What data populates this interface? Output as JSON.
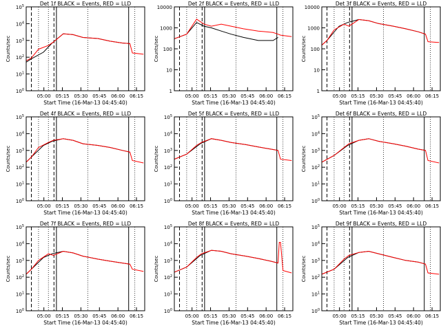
{
  "figure": {
    "xlabel_template": "Start Time (16-Mar-13 04:45:40)",
    "ylabel": "Counts/sec",
    "legend_suffix": "BLACK = Events, RED = LLD",
    "x_ticks": [
      "05:00",
      "05:15",
      "05:30",
      "05:45",
      "06:00",
      "06:15"
    ],
    "colors": {
      "events": "#000000",
      "lld": "#ff0000",
      "axes": "#000000",
      "background": "#ffffff"
    }
  },
  "chart_data": [
    {
      "type": "line",
      "title": "Det 1f BLACK = Events, RED = LLD",
      "ylabel": "Counts/sec",
      "xlabel": "Start Time (16-Mar-13 04:45:40)",
      "y_scale": "log",
      "ylim": [
        1,
        100000
      ],
      "y_ticks": [
        "10^0",
        "10^1",
        "10^2",
        "10^3",
        "10^4",
        "10^5"
      ],
      "x_ticks": [
        "05:00",
        "05:15",
        "05:30",
        "05:45",
        "06:00",
        "06:15"
      ],
      "series": [
        {
          "name": "Events",
          "color": "#000000",
          "t": [
            0,
            4.2,
            14,
            21,
            30,
            38,
            46,
            58,
            68,
            78,
            84
          ],
          "y": [
            50,
            80,
            200,
            700,
            2500,
            2200,
            1500,
            1300,
            900,
            700,
            650
          ]
        },
        {
          "name": "LLD",
          "color": "#ff0000",
          "t": [
            0,
            4.2,
            10,
            18,
            22,
            30,
            38,
            46,
            58,
            68,
            78,
            84,
            86,
            95
          ],
          "y": [
            60,
            90,
            300,
            500,
            800,
            2500,
            2200,
            1500,
            1300,
            900,
            700,
            650,
            180,
            150
          ]
        }
      ]
    },
    {
      "type": "line",
      "title": "Det 2f BLACK = Events, RED = LLD",
      "ylabel": "Counts/sec",
      "xlabel": "Start Time (16-Mar-13 04:45:40)",
      "y_scale": "log",
      "ylim": [
        1,
        10000
      ],
      "y_ticks": [
        "1",
        "10",
        "100",
        "1000",
        "10000"
      ],
      "x_ticks": [
        "05:00",
        "05:15",
        "05:30",
        "05:45",
        "06:00",
        "06:15"
      ],
      "series": [
        {
          "name": "Events",
          "color": "#000000",
          "t": [
            0,
            10,
            18,
            24,
            30,
            38,
            46,
            56,
            68,
            80,
            84
          ],
          "y": [
            300,
            500,
            1800,
            1200,
            1000,
            700,
            500,
            350,
            250,
            250,
            350
          ]
        },
        {
          "name": "LLD",
          "color": "#ff0000",
          "t": [
            0,
            10,
            18,
            24,
            30,
            38,
            46,
            56,
            68,
            80,
            84,
            86,
            95
          ],
          "y": [
            300,
            500,
            2600,
            1500,
            1200,
            1500,
            1200,
            900,
            700,
            600,
            500,
            450,
            380
          ]
        }
      ]
    },
    {
      "type": "line",
      "title": "Det 3f BLACK = Events, RED = LLD",
      "ylabel": "Counts/sec",
      "xlabel": "Start Time (16-Mar-13 04:45:40)",
      "y_scale": "log",
      "ylim": [
        1,
        10000
      ],
      "y_ticks": [
        "1",
        "10",
        "100",
        "1000",
        "10000"
      ],
      "x_ticks": [
        "05:00",
        "05:15",
        "05:30",
        "05:45",
        "06:00",
        "06:15"
      ],
      "series": [
        {
          "name": "Events",
          "color": "#000000",
          "t": [
            0,
            4.2,
            14,
            21,
            30,
            38,
            46,
            58,
            68,
            78,
            84
          ],
          "y": [
            150,
            250,
            1200,
            1800,
            2500,
            2200,
            1600,
            1200,
            900,
            650,
            500
          ]
        },
        {
          "name": "LLD",
          "color": "#ff0000",
          "t": [
            0,
            4.2,
            10,
            18,
            22,
            30,
            38,
            46,
            58,
            68,
            78,
            84,
            86,
            95
          ],
          "y": [
            150,
            250,
            800,
            1500,
            1200,
            2500,
            2200,
            1600,
            1200,
            900,
            650,
            500,
            220,
            200
          ]
        }
      ]
    },
    {
      "type": "line",
      "title": "Det 4f BLACK = Events, RED = LLD",
      "ylabel": "Counts/sec",
      "xlabel": "Start Time (16-Mar-13 04:45:40)",
      "y_scale": "log",
      "ylim": [
        1,
        100000
      ],
      "y_ticks": [
        "10^0",
        "10^1",
        "10^2",
        "10^3",
        "10^4",
        "10^5"
      ],
      "x_ticks": [
        "05:00",
        "05:15",
        "05:30",
        "05:45",
        "06:00",
        "06:15"
      ],
      "series": [
        {
          "name": "Events",
          "color": "#000000",
          "t": [
            0,
            4.2,
            14,
            21,
            30,
            38,
            46,
            58,
            68,
            78,
            84
          ],
          "y": [
            200,
            400,
            2000,
            3500,
            5000,
            4000,
            2500,
            2000,
            1500,
            1000,
            800
          ]
        },
        {
          "name": "LLD",
          "color": "#ff0000",
          "t": [
            0,
            4.2,
            10,
            18,
            22,
            30,
            38,
            46,
            58,
            68,
            78,
            84,
            86,
            95
          ],
          "y": [
            200,
            400,
            1500,
            3000,
            4000,
            5000,
            4000,
            2500,
            2000,
            1500,
            1000,
            800,
            250,
            180
          ]
        }
      ]
    },
    {
      "type": "line",
      "title": "Det 5f BLACK = Events, RED = LLD",
      "ylabel": "Counts/sec",
      "xlabel": "Start Time (16-Mar-13 04:45:40)",
      "y_scale": "log",
      "ylim": [
        1,
        100000
      ],
      "y_ticks": [
        "10^0",
        "10^1",
        "10^2",
        "10^3",
        "10^4",
        "10^5"
      ],
      "x_ticks": [
        "05:00",
        "05:15",
        "05:30",
        "05:45",
        "06:00",
        "06:15"
      ],
      "series": [
        {
          "name": "Events",
          "color": "#000000",
          "t": [
            0,
            10,
            21,
            30,
            38,
            46,
            58,
            68,
            78,
            84
          ],
          "y": [
            300,
            600,
            2500,
            5000,
            4000,
            3000,
            2200,
            1600,
            1200,
            1000
          ]
        },
        {
          "name": "LLD",
          "color": "#ff0000",
          "t": [
            0,
            10,
            18,
            22,
            30,
            38,
            46,
            58,
            68,
            78,
            84,
            86,
            95
          ],
          "y": [
            300,
            600,
            2000,
            3000,
            5000,
            4000,
            3000,
            2200,
            1600,
            1200,
            1000,
            300,
            250
          ]
        }
      ]
    },
    {
      "type": "line",
      "title": "Det 6f BLACK = Events, RED = LLD",
      "ylabel": "Counts/sec",
      "xlabel": "Start Time (16-Mar-13 04:45:40)",
      "y_scale": "log",
      "ylim": [
        1,
        100000
      ],
      "y_ticks": [
        "10^0",
        "10^1",
        "10^2",
        "10^3",
        "10^4",
        "10^5"
      ],
      "x_ticks": [
        "05:00",
        "05:15",
        "05:30",
        "05:45",
        "06:00",
        "06:15"
      ],
      "series": [
        {
          "name": "Events",
          "color": "#000000",
          "t": [
            0,
            10,
            21,
            30,
            38,
            46,
            58,
            68,
            78,
            84
          ],
          "y": [
            200,
            500,
            2000,
            4000,
            5000,
            3500,
            2500,
            1800,
            1200,
            1000
          ]
        },
        {
          "name": "LLD",
          "color": "#ff0000",
          "t": [
            0,
            10,
            18,
            22,
            30,
            38,
            46,
            58,
            68,
            78,
            84,
            86,
            95
          ],
          "y": [
            200,
            500,
            1500,
            2500,
            4000,
            5000,
            3500,
            2500,
            1800,
            1200,
            1000,
            250,
            180
          ]
        }
      ]
    },
    {
      "type": "line",
      "title": "Det 7f BLACK = Events, RED = LLD",
      "ylabel": "Counts/sec",
      "xlabel": "Start Time (16-Mar-13 04:45:40)",
      "y_scale": "log",
      "ylim": [
        1,
        100000
      ],
      "y_ticks": [
        "10^0",
        "10^1",
        "10^2",
        "10^3",
        "10^4",
        "10^5"
      ],
      "x_ticks": [
        "05:00",
        "05:15",
        "05:30",
        "05:45",
        "06:00",
        "06:15"
      ],
      "series": [
        {
          "name": "Events",
          "color": "#000000",
          "t": [
            0,
            4.2,
            14,
            21,
            30,
            38,
            46,
            58,
            68,
            78,
            84
          ],
          "y": [
            150,
            300,
            1500,
            2500,
            3500,
            2800,
            1800,
            1200,
            900,
            700,
            600
          ]
        },
        {
          "name": "LLD",
          "color": "#ff0000",
          "t": [
            0,
            4.2,
            10,
            18,
            22,
            30,
            38,
            46,
            58,
            68,
            78,
            84,
            86,
            95
          ],
          "y": [
            150,
            300,
            1000,
            2500,
            2000,
            3500,
            2800,
            1800,
            1200,
            900,
            700,
            600,
            300,
            220
          ]
        }
      ]
    },
    {
      "type": "line",
      "title": "Det 8f BLACK = Events, RED = LLD",
      "ylabel": "Counts/sec",
      "xlabel": "Start Time (16-Mar-13 04:45:40)",
      "y_scale": "log",
      "ylim": [
        1,
        100000
      ],
      "y_ticks": [
        "10^0",
        "10^1",
        "10^2",
        "10^3",
        "10^4",
        "10^5"
      ],
      "x_ticks": [
        "05:00",
        "05:15",
        "05:30",
        "05:45",
        "06:00",
        "06:15"
      ],
      "series": [
        {
          "name": "Events",
          "color": "#000000",
          "t": [
            0,
            10,
            21,
            30,
            38,
            46,
            58,
            68,
            78,
            84
          ],
          "y": [
            200,
            400,
            2000,
            4000,
            3500,
            2500,
            1800,
            1300,
            900,
            700
          ]
        },
        {
          "name": "LLD",
          "color": "#ff0000",
          "t": [
            0,
            10,
            18,
            22,
            30,
            38,
            46,
            58,
            68,
            78,
            84,
            85,
            86,
            88,
            95
          ],
          "y": [
            200,
            400,
            1500,
            2500,
            4000,
            3500,
            2500,
            1800,
            1300,
            900,
            700,
            12000,
            12000,
            250,
            180
          ]
        }
      ]
    },
    {
      "type": "line",
      "title": "Det 9f BLACK = Events, RED = LLD",
      "ylabel": "Counts/sec",
      "xlabel": "Start Time (16-Mar-13 04:45:40)",
      "y_scale": "log",
      "ylim": [
        1,
        100000
      ],
      "y_ticks": [
        "10^0",
        "10^1",
        "10^2",
        "10^3",
        "10^4",
        "10^5"
      ],
      "x_ticks": [
        "05:00",
        "05:15",
        "05:30",
        "05:45",
        "06:00",
        "06:15"
      ],
      "series": [
        {
          "name": "Events",
          "color": "#000000",
          "t": [
            0,
            10,
            21,
            30,
            38,
            46,
            58,
            68,
            78,
            84
          ],
          "y": [
            150,
            300,
            1500,
            3000,
            3500,
            2500,
            1500,
            1000,
            800,
            600
          ]
        },
        {
          "name": "LLD",
          "color": "#ff0000",
          "t": [
            0,
            10,
            18,
            22,
            30,
            38,
            46,
            58,
            68,
            78,
            84,
            86,
            95
          ],
          "y": [
            150,
            300,
            1200,
            2000,
            3000,
            3500,
            2500,
            1500,
            1000,
            800,
            600,
            180,
            150
          ]
        }
      ]
    }
  ]
}
